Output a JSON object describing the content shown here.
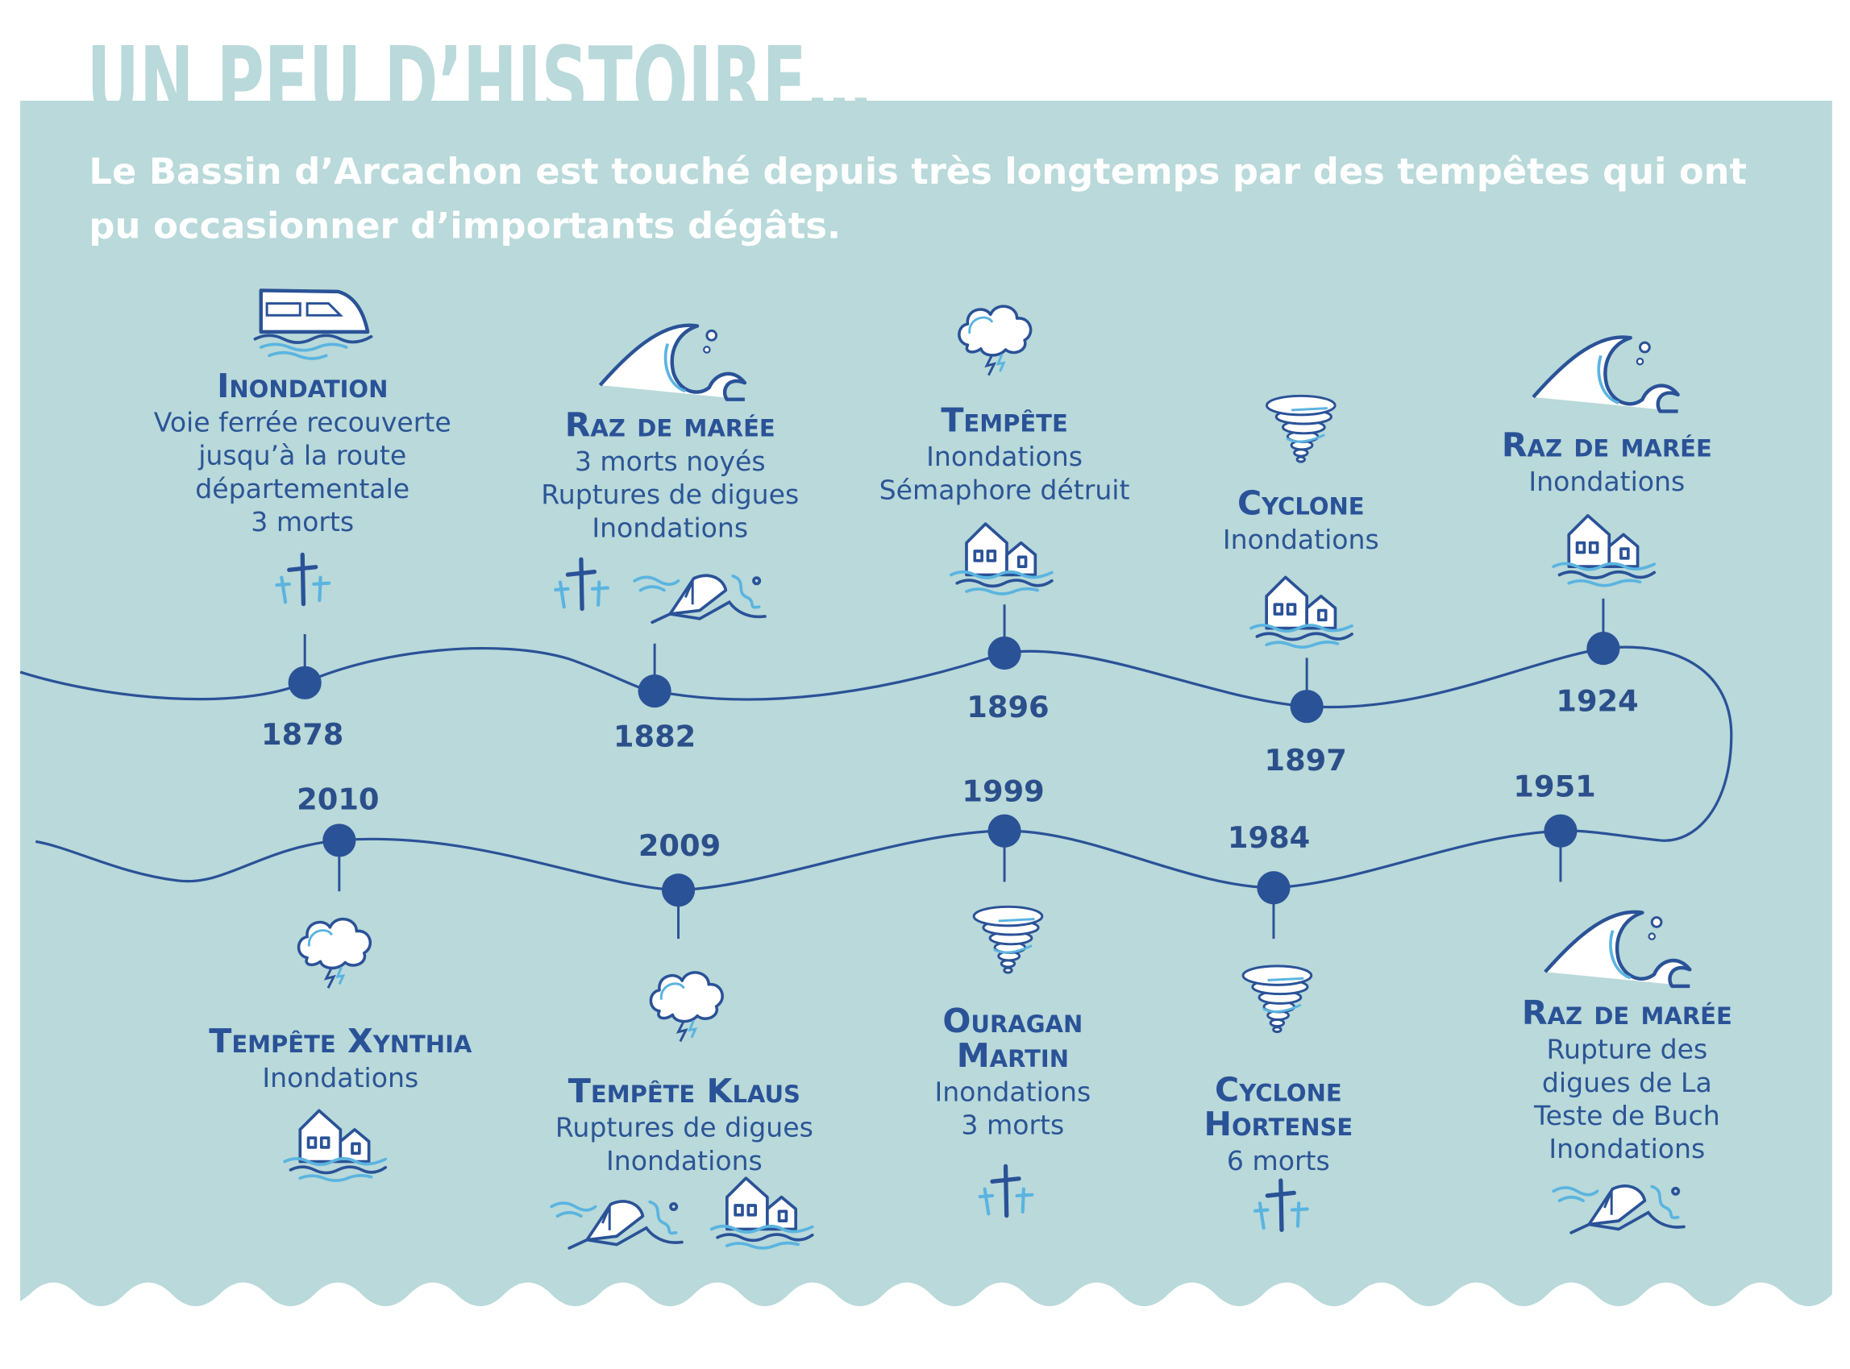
{
  "title": "UN PEU D’HISTOIRE…",
  "intro": [
    "Le Bassin d’Arcachon est touché depuis très longtemps par des tempêtes qui ont",
    "pu occasionner d’importants dégâts."
  ],
  "colors": {
    "panel": "#b9d9da",
    "dark_blue": "#2a5297",
    "light_blue": "#5ab4e0",
    "text_white": "#ffffff"
  },
  "events": [
    {
      "year": "1878",
      "title": [
        "Inondation"
      ],
      "desc": [
        "Voie ferrée recouverte",
        "jusqu’à la route",
        "départementale",
        "3 morts"
      ],
      "icons": [
        "train-icon",
        "crosses-icon"
      ]
    },
    {
      "year": "1882",
      "title": [
        "Raz de marée"
      ],
      "desc": [
        "3 morts noyés",
        "Ruptures de digues",
        "Inondations"
      ],
      "icons": [
        "wave-icon",
        "crosses-icon",
        "sinking-boat-icon"
      ]
    },
    {
      "year": "1896",
      "title": [
        "Tempête"
      ],
      "desc": [
        "Inondations",
        "Sémaphore détruit"
      ],
      "icons": [
        "storm-cloud-icon",
        "flooded-houses-icon"
      ]
    },
    {
      "year": "1897",
      "title": [
        "Cyclone"
      ],
      "desc": [
        "Inondations"
      ],
      "icons": [
        "tornado-icon",
        "flooded-houses-icon"
      ]
    },
    {
      "year": "1924",
      "title": [
        "Raz de marée"
      ],
      "desc": [
        "Inondations"
      ],
      "icons": [
        "wave-icon",
        "flooded-houses-icon"
      ]
    },
    {
      "year": "1951",
      "title": [
        "Raz de marée"
      ],
      "desc": [
        "Rupture des",
        "digues de La",
        "Teste de Buch",
        "Inondations"
      ],
      "icons": [
        "wave-icon",
        "sinking-boat-icon"
      ]
    },
    {
      "year": "1984",
      "title": [
        "Cyclone",
        "Hortense"
      ],
      "desc": [
        "6 morts"
      ],
      "icons": [
        "tornado-icon",
        "crosses-icon"
      ]
    },
    {
      "year": "1999",
      "title": [
        "Ouragan",
        "Martin"
      ],
      "desc": [
        "Inondations",
        "3 morts"
      ],
      "icons": [
        "tornado-icon",
        "crosses-icon"
      ]
    },
    {
      "year": "2009",
      "title": [
        "Tempête Klaus"
      ],
      "desc": [
        "Ruptures de digues",
        "Inondations"
      ],
      "icons": [
        "storm-cloud-icon",
        "sinking-boat-icon",
        "flooded-houses-icon"
      ]
    },
    {
      "year": "2010",
      "title": [
        "Tempête Xynthia"
      ],
      "desc": [
        "Inondations"
      ],
      "icons": [
        "storm-cloud-icon",
        "flooded-houses-icon"
      ]
    }
  ]
}
